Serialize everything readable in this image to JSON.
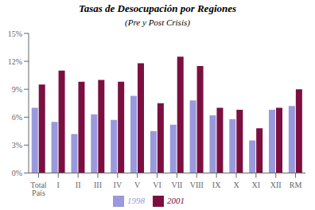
{
  "chart_data": {
    "type": "bar",
    "title": "Tasas de Desocupación por Regiones",
    "subtitle": "(Pre y Post Crisis)",
    "categories": [
      "Total\nPaís",
      "I",
      "II",
      "III",
      "IV",
      "V",
      "VI",
      "VII",
      "VIII",
      "IX",
      "X",
      "XI",
      "XII",
      "RM"
    ],
    "series": [
      {
        "name": "1998",
        "color": "#9999dd",
        "values": [
          7.0,
          5.5,
          4.2,
          6.3,
          5.7,
          8.3,
          4.5,
          5.2,
          7.8,
          6.2,
          5.8,
          3.5,
          6.8,
          7.2
        ]
      },
      {
        "name": "2001",
        "color": "#7b1040",
        "values": [
          9.5,
          11.0,
          9.8,
          10.0,
          9.8,
          11.8,
          7.5,
          12.5,
          11.5,
          7.0,
          6.8,
          4.8,
          7.0,
          9.0
        ]
      }
    ],
    "ylim": [
      0,
      15
    ],
    "yticks": [
      {
        "value": 0,
        "label": "0%"
      },
      {
        "value": 3,
        "label": "3%"
      },
      {
        "value": 6,
        "label": "6%"
      },
      {
        "value": 9,
        "label": "9%"
      },
      {
        "value": 12,
        "label": "12%"
      },
      {
        "value": 15,
        "label": "15%"
      }
    ],
    "grid": false,
    "legend": "bottom"
  }
}
